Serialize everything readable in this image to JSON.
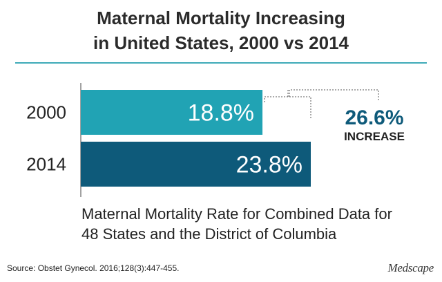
{
  "header": {
    "title_lines": [
      "Maternal Mortality Increasing",
      "in United States, 2000 vs 2014"
    ]
  },
  "chart_data": {
    "type": "bar",
    "orientation": "horizontal",
    "categories": [
      "2000",
      "2014"
    ],
    "values": [
      18.8,
      23.8
    ],
    "value_labels": [
      "18.8%",
      "23.8%"
    ],
    "colors": [
      "#21a3b4",
      "#0e5a7a"
    ],
    "xlim": [
      0,
      30
    ],
    "grid": false,
    "annotation": {
      "value": "26.6%",
      "label": "INCREASE",
      "color": "#0e5a7a"
    },
    "caption_lines": [
      "Maternal Mortality Rate for Combined Data for",
      "48 States and the District of Columbia"
    ]
  },
  "footer": {
    "source": "Source: Obstet Gynecol. 2016;128(3):447-455.",
    "logo": "Medscape"
  },
  "colors": {
    "accent_rule": "#3eaab8",
    "axis": "#444444",
    "connector": "#555555"
  }
}
